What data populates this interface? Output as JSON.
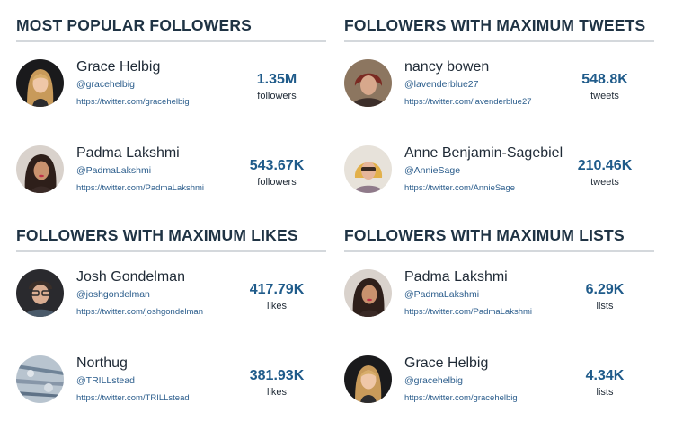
{
  "sections": [
    {
      "title": "MOST POPULAR FOLLOWERS",
      "items": [
        {
          "name": "Grace Helbig",
          "handle": "@gracehelbig",
          "url": "https://twitter.com/gracehelbig",
          "value": "1.35M",
          "label": "followers",
          "avatar": "grace-helbig-avatar"
        },
        {
          "name": "Padma Lakshmi",
          "handle": "@PadmaLakshmi",
          "url": "https://twitter.com/PadmaLakshmi",
          "value": "543.67K",
          "label": "followers",
          "avatar": "padma-lakshmi-avatar"
        }
      ]
    },
    {
      "title": "FOLLOWERS WITH MAXIMUM TWEETS",
      "items": [
        {
          "name": "nancy bowen",
          "handle": "@lavenderblue27",
          "url": "https://twitter.com/lavenderblue27",
          "value": "548.8K",
          "label": "tweets",
          "avatar": "nancy-bowen-avatar"
        },
        {
          "name": "Anne Benjamin-Sagebiel",
          "handle": "@AnnieSage",
          "url": "https://twitter.com/AnnieSage",
          "value": "210.46K",
          "label": "tweets",
          "avatar": "anne-benjamin-sagebiel-avatar"
        }
      ]
    },
    {
      "title": "FOLLOWERS WITH MAXIMUM LIKES",
      "items": [
        {
          "name": "Josh Gondelman",
          "handle": "@joshgondelman",
          "url": "https://twitter.com/joshgondelman",
          "value": "417.79K",
          "label": "likes",
          "avatar": "josh-gondelman-avatar"
        },
        {
          "name": "Northug",
          "handle": "@TRILLstead",
          "url": "https://twitter.com/TRILLstead",
          "value": "381.93K",
          "label": "likes",
          "avatar": "northug-avatar"
        }
      ]
    },
    {
      "title": "FOLLOWERS WITH MAXIMUM LISTS",
      "items": [
        {
          "name": "Padma Lakshmi",
          "handle": "@PadmaLakshmi",
          "url": "https://twitter.com/PadmaLakshmi",
          "value": "6.29K",
          "label": "lists",
          "avatar": "padma-lakshmi-avatar"
        },
        {
          "name": "Grace Helbig",
          "handle": "@gracehelbig",
          "url": "https://twitter.com/gracehelbig",
          "value": "4.34K",
          "label": "lists",
          "avatar": "grace-helbig-avatar"
        }
      ]
    }
  ]
}
